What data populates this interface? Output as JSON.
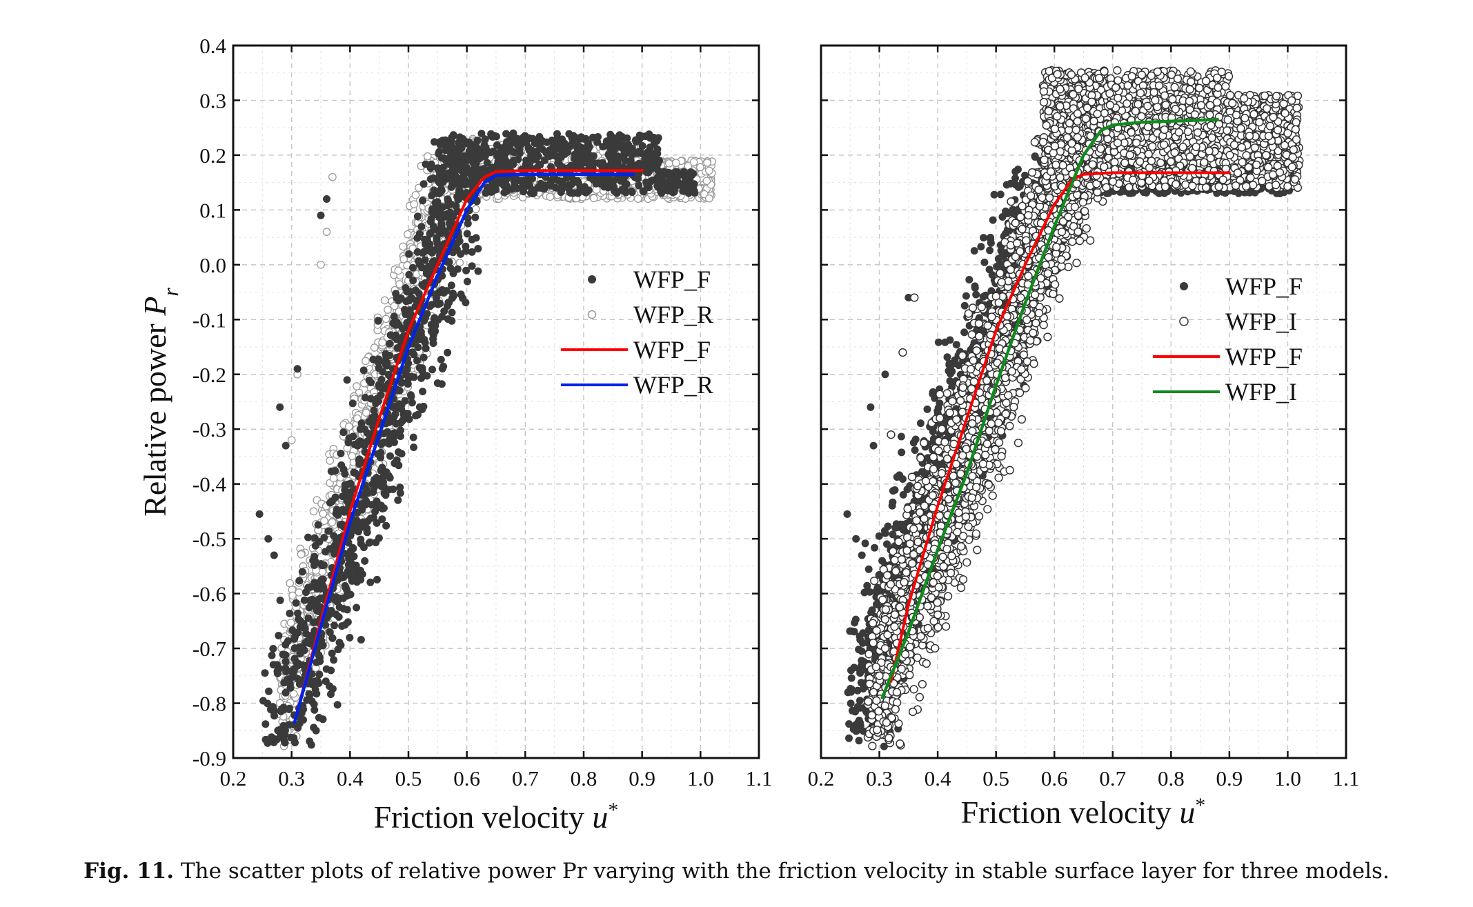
{
  "caption": {
    "label": "Fig. 11.",
    "text": "The scatter plots of relative power Pr varying with the friction velocity in stable surface layer for three models."
  },
  "colors": {
    "filled_point": "#3a3a3a",
    "open_point_stroke": "#555555",
    "light_open_stroke": "#9a9a9a",
    "wfp_f_line": "#ff0000",
    "wfp_r_line": "#0022ee",
    "wfp_i_line": "#118a1e",
    "grid": "#c8c8c8"
  },
  "chart_data": [
    {
      "type": "scatter",
      "panel": "left",
      "xlabel": "Friction velocity u*",
      "ylabel": "Relative power Pr",
      "xlim": [
        0.2,
        1.1
      ],
      "ylim": [
        -0.9,
        0.4
      ],
      "xticks": [
        "0.2",
        "0.3",
        "0.4",
        "0.5",
        "0.6",
        "0.7",
        "0.8",
        "0.9",
        "1.0",
        "1.1"
      ],
      "yticks": [
        "-0.9",
        "-0.8",
        "-0.7",
        "-0.6",
        "-0.5",
        "-0.4",
        "-0.3",
        "-0.2",
        "-0.1",
        "0.0",
        "0.1",
        "0.2",
        "0.3",
        "0.4"
      ],
      "grid": true,
      "legend_position": "center-right",
      "series": [
        {
          "name": "WFP_F",
          "kind": "scatter",
          "marker": "filled",
          "cloud": {
            "x_min": 0.24,
            "x_max": 1.01,
            "plateau_start": 0.63,
            "plateau_top": 0.24,
            "plateau_bottom": 0.13,
            "lower_bound_x_at": [
              [
                0.3,
                -0.83
              ],
              [
                0.45,
                -0.6
              ],
              [
                0.55,
                -0.1
              ],
              [
                0.62,
                0.13
              ]
            ],
            "upper_bound_x_at": [
              [
                0.24,
                -0.45
              ],
              [
                0.3,
                -0.2
              ],
              [
                0.36,
                0.1
              ],
              [
                0.4,
                0.2
              ]
            ]
          }
        },
        {
          "name": "WFP_R",
          "kind": "scatter",
          "marker": "open-light",
          "cloud": {
            "x_min": 0.27,
            "x_max": 1.03,
            "plateau_start": 0.63,
            "plateau_top": 0.22,
            "plateau_bottom": 0.12
          }
        },
        {
          "name": "WFP_F",
          "kind": "line",
          "x": [
            0.305,
            0.35,
            0.4,
            0.45,
            0.5,
            0.55,
            0.6,
            0.63,
            0.65,
            0.7,
            0.8,
            0.9
          ],
          "y": [
            -0.835,
            -0.65,
            -0.45,
            -0.28,
            -0.12,
            0.0,
            0.12,
            0.16,
            0.17,
            0.172,
            0.172,
            0.172
          ]
        },
        {
          "name": "WFP_R",
          "kind": "line",
          "x": [
            0.305,
            0.35,
            0.4,
            0.45,
            0.5,
            0.55,
            0.6,
            0.63,
            0.65,
            0.7,
            0.8,
            0.885
          ],
          "y": [
            -0.835,
            -0.66,
            -0.47,
            -0.31,
            -0.15,
            -0.02,
            0.1,
            0.15,
            0.163,
            0.165,
            0.165,
            0.165
          ]
        }
      ]
    },
    {
      "type": "scatter",
      "panel": "right",
      "xlabel": "Friction velocity u*",
      "ylabel": "",
      "xlim": [
        0.2,
        1.1
      ],
      "ylim": [
        -0.9,
        0.4
      ],
      "xticks": [
        "0.2",
        "0.3",
        "0.4",
        "0.5",
        "0.6",
        "0.7",
        "0.8",
        "0.9",
        "1.0",
        "1.1"
      ],
      "grid": true,
      "legend_position": "center-right",
      "series": [
        {
          "name": "WFP_F",
          "kind": "scatter",
          "marker": "filled",
          "cloud": {
            "x_min": 0.24,
            "x_max": 1.01,
            "plateau_start": 0.63,
            "plateau_top": 0.18,
            "plateau_bottom": 0.13
          }
        },
        {
          "name": "WFP_I",
          "kind": "scatter",
          "marker": "open",
          "cloud": {
            "x_min": 0.28,
            "x_max": 1.02,
            "plateau_start": 0.68,
            "plateau_top": 0.36,
            "plateau_bottom": 0.14
          }
        },
        {
          "name": "WFP_F",
          "kind": "line",
          "x": [
            0.32,
            0.35,
            0.4,
            0.45,
            0.5,
            0.55,
            0.6,
            0.63,
            0.65,
            0.7,
            0.8,
            0.9
          ],
          "y": [
            -0.76,
            -0.62,
            -0.44,
            -0.28,
            -0.12,
            0.0,
            0.11,
            0.155,
            0.165,
            0.168,
            0.168,
            0.168
          ]
        },
        {
          "name": "WFP_I",
          "kind": "line",
          "x": [
            0.305,
            0.35,
            0.4,
            0.45,
            0.5,
            0.55,
            0.6,
            0.65,
            0.68,
            0.7,
            0.75,
            0.8,
            0.88
          ],
          "y": [
            -0.79,
            -0.67,
            -0.52,
            -0.38,
            -0.22,
            -0.07,
            0.07,
            0.2,
            0.245,
            0.255,
            0.26,
            0.262,
            0.265
          ]
        }
      ]
    }
  ],
  "legend_left": [
    {
      "label": "WFP_F",
      "symbol": "filled"
    },
    {
      "label": "WFP_R",
      "symbol": "open-light"
    },
    {
      "label": "WFP_F",
      "symbol": "line-red"
    },
    {
      "label": "WFP_R",
      "symbol": "line-blue"
    }
  ],
  "legend_right": [
    {
      "label": "WFP_F",
      "symbol": "filled"
    },
    {
      "label": "WFP_I",
      "symbol": "open"
    },
    {
      "label": "WFP_F",
      "symbol": "line-red"
    },
    {
      "label": "WFP_I",
      "symbol": "line-green"
    }
  ]
}
